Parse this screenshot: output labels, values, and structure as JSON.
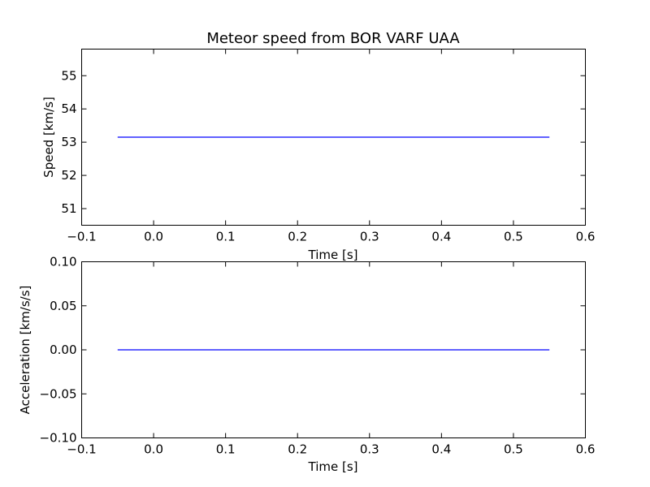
{
  "chart_data": [
    {
      "type": "line",
      "title": "Meteor speed from  BOR VARF UAA",
      "xlabel": "Time [s]",
      "ylabel": "Speed [km/s]",
      "xlim": [
        -0.1,
        0.6
      ],
      "ylim": [
        50.5,
        55.8
      ],
      "xticks": [
        -0.1,
        0.0,
        0.1,
        0.2,
        0.3,
        0.4,
        0.5,
        0.6
      ],
      "xtick_labels": [
        "−0.1",
        "0.0",
        "0.1",
        "0.2",
        "0.3",
        "0.4",
        "0.5",
        "0.6"
      ],
      "yticks": [
        51,
        52,
        53,
        54,
        55
      ],
      "ytick_labels": [
        "51",
        "52",
        "53",
        "54",
        "55"
      ],
      "grid": false,
      "series": [
        {
          "color": "#0000ff",
          "x": [
            -0.05,
            0.55
          ],
          "y": [
            53.15,
            53.15
          ]
        }
      ]
    },
    {
      "type": "line",
      "title": "",
      "xlabel": "Time [s]",
      "ylabel": "Acceleration [km/s/s]",
      "xlim": [
        -0.1,
        0.6
      ],
      "ylim": [
        -0.1,
        0.1
      ],
      "xticks": [
        -0.1,
        0.0,
        0.1,
        0.2,
        0.3,
        0.4,
        0.5,
        0.6
      ],
      "xtick_labels": [
        "−0.1",
        "0.0",
        "0.1",
        "0.2",
        "0.3",
        "0.4",
        "0.5",
        "0.6"
      ],
      "yticks": [
        -0.1,
        -0.05,
        0.0,
        0.05,
        0.1
      ],
      "ytick_labels": [
        "−0.10",
        "−0.05",
        "0.00",
        "0.05",
        "0.10"
      ],
      "grid": false,
      "series": [
        {
          "color": "#0000ff",
          "x": [
            -0.05,
            0.55
          ],
          "y": [
            0.0,
            0.0
          ]
        }
      ]
    }
  ]
}
